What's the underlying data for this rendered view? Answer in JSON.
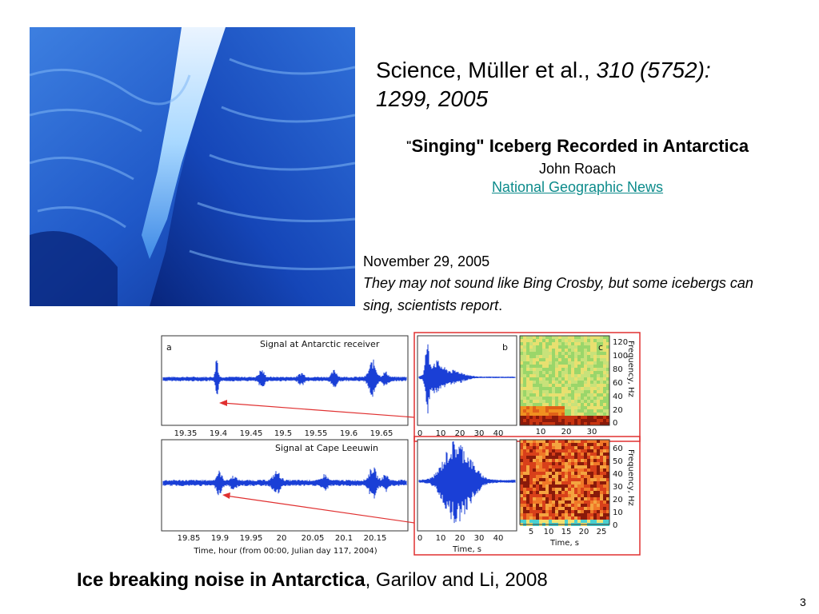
{
  "citation": {
    "text": "Science, Müller et al., ",
    "volume": "310 (5752):",
    "pages_year": "1299, 2005"
  },
  "article": {
    "title_quote": "\"",
    "title": "Singing\" Iceberg Recorded in Antarctica",
    "author": "John Roach",
    "source": "National Geographic News"
  },
  "news": {
    "date": "November 29, 2005",
    "quote": "They may not sound like Bing Crosby, but some icebergs can sing, scientists report",
    "quote_end": "."
  },
  "figure": {
    "panel_a": {
      "letter": "a",
      "title": "Signal at Antarctic receiver",
      "ticks": [
        "19.35",
        "19.4",
        "19.45",
        "19.5",
        "19.55",
        "19.6",
        "19.65"
      ]
    },
    "panel_b": {
      "letter": "b",
      "ticks": [
        "0",
        "10",
        "20",
        "30",
        "40"
      ]
    },
    "panel_c": {
      "letter": "c",
      "xticks": [
        "10",
        "20",
        "30"
      ],
      "yticks": [
        "0",
        "20",
        "40",
        "60",
        "80",
        "100",
        "120"
      ],
      "ylabel": "Frequency, Hz"
    },
    "panel_d": {
      "title": "Signal at Cape Leeuwin",
      "ticks": [
        "19.85",
        "19.9",
        "19.95",
        "20",
        "20.05",
        "20.1",
        "20.15"
      ],
      "xlabel": "Time, hour (from 00:00, Julian day 117, 2004)"
    },
    "panel_e": {
      "ticks": [
        "0",
        "10",
        "20",
        "30",
        "40"
      ],
      "xlabel": "Time, s"
    },
    "panel_f": {
      "xticks": [
        "5",
        "10",
        "15",
        "20",
        "25"
      ],
      "yticks": [
        "0",
        "10",
        "20",
        "30",
        "40",
        "50",
        "60"
      ],
      "ylabel": "Frequency, Hz",
      "xlabel": "Time, s"
    },
    "signal_color": "#1a3fd6",
    "highlight_color": "#e03030"
  },
  "caption": {
    "bold": "Ice breaking noise in Antarctica",
    "rest": ", Garilov and Li, 2008"
  },
  "page_number": "3"
}
